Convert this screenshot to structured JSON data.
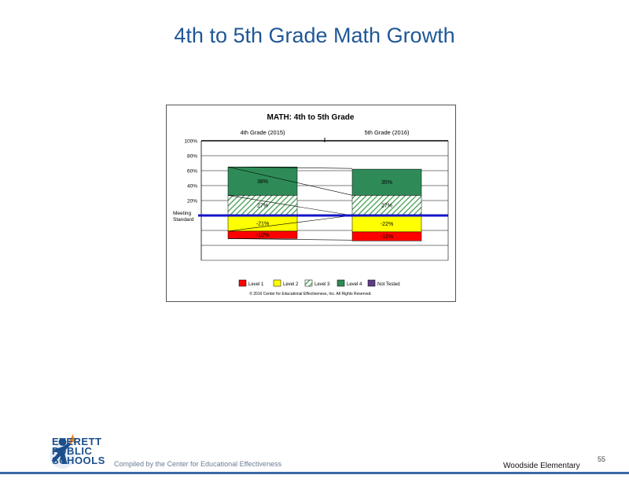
{
  "slide": {
    "title": "4th to 5th Grade Math Growth",
    "compiled_by": "Compiled by the Center for Educational Effectiveness",
    "school": "Woodside Elementary",
    "page_number": "55",
    "logo_lines": [
      "EVERETT",
      "PUBLIC",
      "SCHOOLS"
    ]
  },
  "chart_data": {
    "type": "bar",
    "title": "MATH: 4th to 5th Grade",
    "categories": [
      "4th Grade (2015)",
      "5th Grade (2016)"
    ],
    "y_ticks": [
      "100%",
      "80%",
      "60%",
      "40%",
      "20%"
    ],
    "ylim": [
      -60,
      100
    ],
    "meeting_standard_label": [
      "Meeting",
      "Standard"
    ],
    "series": [
      {
        "name": "Level 1",
        "color": "#ff0000",
        "values": [
          -10,
          -12
        ],
        "labels": [
          "-10%",
          "-12%"
        ]
      },
      {
        "name": "Level 2",
        "color": "#ffff00",
        "values": [
          -21,
          -22
        ],
        "labels": [
          "-21%",
          "-22%"
        ]
      },
      {
        "name": "Level 3",
        "color": "#55aa55",
        "pattern": "hatch",
        "values": [
          27,
          27
        ],
        "labels": [
          "27%",
          "27%"
        ]
      },
      {
        "name": "Level 4",
        "color": "#2e8b57",
        "values": [
          38,
          35
        ],
        "labels": [
          "38%",
          "35%"
        ]
      },
      {
        "name": "Not Tested",
        "color": "#5e3d86",
        "values": [
          0,
          0
        ],
        "labels": [
          "",
          ""
        ]
      }
    ],
    "legend_position": "bottom",
    "copyright": "© 2016 Center for Educational Effectiveness, Inc. All Rights Reserved.",
    "colors": {
      "meeting_line": "#1414c8",
      "grid": "#000000"
    }
  }
}
